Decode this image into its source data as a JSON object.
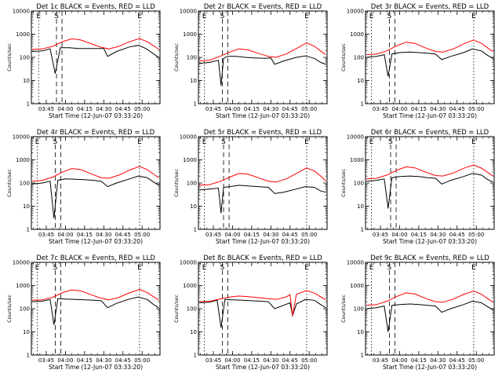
{
  "chart_data": [
    {
      "type": "line",
      "title": "Det 1c BLACK = Events, RED = LLD",
      "ylabel": "Counts/sec",
      "xlabel": "Start Time (12-Jun-07 03:33:20)",
      "ylog": true,
      "ylim": [
        1,
        10000
      ],
      "xticks": [
        "03:45",
        "04:00",
        "04:15",
        "04:30",
        "04:45",
        "05:00"
      ],
      "markers": [
        {
          "label": "E",
          "time": "03:39"
        },
        {
          "label": "S",
          "time": "03:53"
        },
        {
          "label": "E",
          "time": "04:58"
        }
      ],
      "series": [
        {
          "name": "Events",
          "color": "#000000",
          "x": [
            "03:34",
            "03:42",
            "03:48",
            "03:52",
            "03:56",
            "04:03",
            "04:10",
            "04:20",
            "04:30",
            "04:33",
            "04:40",
            "04:50",
            "04:57",
            "05:03",
            "05:09",
            "05:13"
          ],
          "y": [
            180,
            190,
            230,
            20,
            260,
            260,
            240,
            240,
            240,
            110,
            180,
            280,
            330,
            240,
            140,
            100
          ]
        },
        {
          "name": "LLD",
          "color": "#ff0000",
          "x": [
            "03:34",
            "03:42",
            "03:50",
            "03:58",
            "04:05",
            "04:12",
            "04:20",
            "04:28",
            "04:34",
            "04:42",
            "04:50",
            "04:58",
            "05:04",
            "05:10",
            "05:13"
          ],
          "y": [
            220,
            230,
            300,
            480,
            630,
            560,
            390,
            270,
            230,
            300,
            470,
            650,
            470,
            290,
            220
          ]
        }
      ]
    },
    {
      "type": "line",
      "title": "Det 2r BLACK = Events, RED = LLD",
      "ylabel": "Counts/sec",
      "xlabel": "Start Time (12-Jun-07 03:33:20)",
      "ylog": true,
      "ylim": [
        1,
        10000
      ],
      "xticks": [
        "03:45",
        "04:00",
        "04:15",
        "04:30",
        "04:45",
        "05:00"
      ],
      "markers": [
        {
          "label": "E",
          "time": "03:38"
        },
        {
          "label": "S",
          "time": "03:52"
        },
        {
          "label": "E",
          "time": "04:58"
        }
      ],
      "series": [
        {
          "name": "Events",
          "color": "#000000",
          "x": [
            "03:34",
            "03:42",
            "03:49",
            "03:51",
            "03:53",
            "03:56",
            "04:03",
            "04:10",
            "04:17",
            "04:25",
            "04:30",
            "04:33",
            "04:40",
            "04:50",
            "04:57",
            "05:04",
            "05:09",
            "05:13"
          ],
          "y": [
            55,
            60,
            75,
            6,
            90,
            110,
            110,
            100,
            95,
            90,
            95,
            50,
            70,
            100,
            115,
            90,
            60,
            50
          ]
        },
        {
          "name": "LLD",
          "color": "#ff0000",
          "x": [
            "03:34",
            "03:42",
            "03:50",
            "03:58",
            "04:05",
            "04:12",
            "04:20",
            "04:28",
            "04:34",
            "04:42",
            "04:50",
            "04:58",
            "05:04",
            "05:10",
            "05:13"
          ],
          "y": [
            70,
            75,
            110,
            170,
            230,
            210,
            150,
            110,
            100,
            140,
            240,
            420,
            300,
            170,
            130
          ]
        }
      ]
    },
    {
      "type": "line",
      "title": "Det 3r BLACK = Events, RED = LLD",
      "ylabel": "Counts/sec",
      "xlabel": "Start Time (12-Jun-07 03:33:20)",
      "ylog": true,
      "ylim": [
        1,
        10000
      ],
      "xticks": [
        "03:45",
        "04:00",
        "04:15",
        "04:30",
        "04:45",
        "05:00"
      ],
      "markers": [
        {
          "label": "E",
          "time": "03:38"
        },
        {
          "label": "S",
          "time": "03:52"
        },
        {
          "label": "E",
          "time": "04:58"
        }
      ],
      "series": [
        {
          "name": "Events",
          "color": "#000000",
          "x": [
            "03:34",
            "03:42",
            "03:48",
            "03:51",
            "03:54",
            "04:00",
            "04:08",
            "04:15",
            "04:22",
            "04:28",
            "04:33",
            "04:40",
            "04:50",
            "04:57",
            "05:04",
            "05:09",
            "05:13"
          ],
          "y": [
            100,
            110,
            130,
            15,
            140,
            160,
            170,
            160,
            150,
            140,
            80,
            110,
            160,
            230,
            190,
            120,
            90
          ]
        },
        {
          "name": "LLD",
          "color": "#ff0000",
          "x": [
            "03:34",
            "03:42",
            "03:50",
            "03:58",
            "04:05",
            "04:12",
            "04:20",
            "04:28",
            "04:34",
            "04:42",
            "04:50",
            "04:58",
            "05:04",
            "05:10",
            "05:13"
          ],
          "y": [
            130,
            140,
            190,
            320,
            450,
            400,
            260,
            180,
            170,
            230,
            380,
            560,
            400,
            230,
            180
          ]
        }
      ]
    },
    {
      "type": "line",
      "title": "Det 4r BLACK = Events, RED = LLD",
      "ylabel": "Counts/sec",
      "xlabel": "Start Time (12-Jun-07 03:33:20)",
      "ylog": true,
      "ylim": [
        1,
        10000
      ],
      "xticks": [
        "03:45",
        "04:00",
        "04:15",
        "04:30",
        "04:45",
        "05:00"
      ],
      "markers": [
        {
          "label": "E",
          "time": "03:38"
        },
        {
          "label": "S",
          "time": "03:52"
        },
        {
          "label": "E",
          "time": "04:58"
        }
      ],
      "series": [
        {
          "name": "Events",
          "color": "#000000",
          "x": [
            "03:34",
            "03:42",
            "03:48",
            "03:51",
            "03:54",
            "04:00",
            "04:08",
            "04:15",
            "04:22",
            "04:28",
            "04:33",
            "04:40",
            "04:50",
            "04:57",
            "05:04",
            "05:09",
            "05:13"
          ],
          "y": [
            90,
            100,
            120,
            3,
            130,
            150,
            145,
            140,
            130,
            120,
            70,
            100,
            150,
            200,
            170,
            110,
            80
          ]
        },
        {
          "name": "LLD",
          "color": "#ff0000",
          "x": [
            "03:34",
            "03:42",
            "03:50",
            "03:58",
            "04:05",
            "04:12",
            "04:20",
            "04:28",
            "04:34",
            "04:42",
            "04:50",
            "04:58",
            "05:04",
            "05:10",
            "05:13"
          ],
          "y": [
            120,
            130,
            180,
            300,
            420,
            380,
            250,
            170,
            160,
            220,
            360,
            520,
            380,
            220,
            170
          ]
        }
      ]
    },
    {
      "type": "line",
      "title": "Det 5r BLACK = Events, RED = LLD",
      "ylabel": "Counts/sec",
      "xlabel": "Start Time (12-Jun-07 03:33:20)",
      "ylog": true,
      "ylim": [
        1,
        10000
      ],
      "xticks": [
        "03:45",
        "04:00",
        "04:15",
        "04:30",
        "04:45",
        "05:00"
      ],
      "markers": [
        {
          "label": "E",
          "time": "03:38"
        },
        {
          "label": "S",
          "time": "03:53"
        },
        {
          "label": "E",
          "time": "04:58"
        }
      ],
      "series": [
        {
          "name": "Events",
          "color": "#000000",
          "x": [
            "03:34",
            "03:42",
            "03:49",
            "03:51",
            "03:53",
            "03:58",
            "04:05",
            "04:12",
            "04:20",
            "04:28",
            "04:33",
            "04:40",
            "04:50",
            "04:57",
            "05:04",
            "05:09",
            "05:13"
          ],
          "y": [
            50,
            55,
            60,
            5,
            65,
            70,
            80,
            75,
            70,
            65,
            35,
            40,
            55,
            70,
            65,
            45,
            40
          ]
        },
        {
          "name": "LLD",
          "color": "#ff0000",
          "x": [
            "03:34",
            "03:42",
            "03:50",
            "03:58",
            "04:05",
            "04:12",
            "04:20",
            "04:28",
            "04:34",
            "04:42",
            "04:50",
            "04:58",
            "05:04",
            "05:10",
            "05:13"
          ],
          "y": [
            80,
            85,
            115,
            180,
            260,
            240,
            170,
            120,
            110,
            150,
            260,
            450,
            330,
            180,
            120
          ]
        }
      ]
    },
    {
      "type": "line",
      "title": "Det 6r BLACK = Events, RED = LLD",
      "ylabel": "Counts/sec",
      "xlabel": "Start Time (12-Jun-07 03:33:20)",
      "ylog": true,
      "ylim": [
        1,
        10000
      ],
      "xticks": [
        "03:45",
        "04:00",
        "04:15",
        "04:30",
        "04:45",
        "05:00"
      ],
      "markers": [
        {
          "label": "E",
          "time": "03:38"
        },
        {
          "label": "S",
          "time": "03:53"
        },
        {
          "label": "E",
          "time": "04:58"
        }
      ],
      "series": [
        {
          "name": "Events",
          "color": "#000000",
          "x": [
            "03:34",
            "03:42",
            "03:48",
            "03:51",
            "03:54",
            "04:00",
            "04:08",
            "04:15",
            "04:22",
            "04:28",
            "04:33",
            "04:40",
            "04:50",
            "04:57",
            "05:04",
            "05:09",
            "05:13"
          ],
          "y": [
            120,
            130,
            150,
            8,
            170,
            190,
            200,
            190,
            170,
            160,
            90,
            130,
            190,
            260,
            220,
            140,
            110
          ]
        },
        {
          "name": "LLD",
          "color": "#ff0000",
          "x": [
            "03:34",
            "03:42",
            "03:50",
            "03:58",
            "04:05",
            "04:12",
            "04:20",
            "04:28",
            "04:34",
            "04:42",
            "04:50",
            "04:58",
            "05:04",
            "05:10",
            "05:13"
          ],
          "y": [
            150,
            160,
            220,
            360,
            500,
            450,
            300,
            210,
            200,
            270,
            430,
            600,
            440,
            260,
            200
          ]
        }
      ]
    },
    {
      "type": "line",
      "title": "Det 7c BLACK = Events, RED = LLD",
      "ylabel": "Counts/sec",
      "xlabel": "Start Time (12-Jun-07 03:33:20)",
      "ylog": true,
      "ylim": [
        1,
        10000
      ],
      "xticks": [
        "03:45",
        "04:00",
        "04:15",
        "04:30",
        "04:45",
        "05:00"
      ],
      "markers": [
        {
          "label": "E",
          "time": "03:38"
        },
        {
          "label": "S",
          "time": "03:52"
        },
        {
          "label": "E",
          "time": "04:58"
        }
      ],
      "series": [
        {
          "name": "Events",
          "color": "#000000",
          "x": [
            "03:34",
            "03:42",
            "03:48",
            "03:51",
            "03:54",
            "04:00",
            "04:08",
            "04:15",
            "04:22",
            "04:28",
            "04:33",
            "04:40",
            "04:50",
            "04:57",
            "05:04",
            "05:09",
            "05:13"
          ],
          "y": [
            200,
            210,
            250,
            20,
            270,
            260,
            250,
            240,
            230,
            220,
            110,
            170,
            260,
            320,
            250,
            150,
            110
          ]
        },
        {
          "name": "LLD",
          "color": "#ff0000",
          "x": [
            "03:34",
            "03:42",
            "03:50",
            "03:58",
            "04:05",
            "04:12",
            "04:20",
            "04:28",
            "04:34",
            "04:42",
            "04:50",
            "04:58",
            "05:04",
            "05:10",
            "05:13"
          ],
          "y": [
            230,
            240,
            310,
            500,
            650,
            580,
            400,
            280,
            240,
            310,
            480,
            680,
            490,
            300,
            230
          ]
        }
      ]
    },
    {
      "type": "line",
      "title": "Det 8c BLACK = Events, RED = LLD",
      "ylabel": "Counts/sec",
      "xlabel": "Start Time (12-Jun-07 03:33:20)",
      "ylog": true,
      "ylim": [
        1,
        10000
      ],
      "xticks": [
        "03:45",
        "04:00",
        "04:15",
        "04:30",
        "04:45",
        "05:00"
      ],
      "markers": [
        {
          "label": "E",
          "time": "03:38"
        },
        {
          "label": "S",
          "time": "03:52"
        },
        {
          "label": "E",
          "time": "04:58"
        }
      ],
      "series": [
        {
          "name": "Events",
          "color": "#000000",
          "x": [
            "03:34",
            "03:42",
            "03:48",
            "03:51",
            "03:54",
            "04:00",
            "04:08",
            "04:15",
            "04:22",
            "04:28",
            "04:33",
            "04:40",
            "04:45",
            "04:47",
            "04:50",
            "04:57",
            "05:04",
            "05:09",
            "05:13"
          ],
          "y": [
            180,
            190,
            230,
            15,
            250,
            240,
            230,
            220,
            210,
            200,
            100,
            140,
            180,
            50,
            160,
            250,
            230,
            150,
            110
          ]
        },
        {
          "name": "LLD",
          "color": "#ff0000",
          "x": [
            "03:34",
            "03:42",
            "03:50",
            "03:58",
            "04:05",
            "04:12",
            "04:20",
            "04:28",
            "04:34",
            "04:42",
            "04:45",
            "04:47",
            "04:50",
            "04:58",
            "05:04",
            "05:10",
            "05:13"
          ],
          "y": [
            200,
            210,
            260,
            320,
            350,
            330,
            300,
            270,
            250,
            320,
            400,
            50,
            420,
            600,
            470,
            300,
            240
          ]
        }
      ]
    },
    {
      "type": "line",
      "title": "Det 9c BLACK = Events, RED = LLD",
      "ylabel": "Counts/sec",
      "xlabel": "Start Time (12-Jun-07 03:33:20)",
      "ylog": true,
      "ylim": [
        1,
        10000
      ],
      "xticks": [
        "03:45",
        "04:00",
        "04:15",
        "04:30",
        "04:45",
        "05:00"
      ],
      "markers": [
        {
          "label": "E",
          "time": "03:38"
        },
        {
          "label": "S",
          "time": "03:52"
        },
        {
          "label": "E",
          "time": "04:58"
        }
      ],
      "series": [
        {
          "name": "Events",
          "color": "#000000",
          "x": [
            "03:34",
            "03:42",
            "03:48",
            "03:51",
            "03:54",
            "04:00",
            "04:08",
            "04:15",
            "04:22",
            "04:28",
            "04:33",
            "04:40",
            "04:50",
            "04:57",
            "05:04",
            "05:09",
            "05:13"
          ],
          "y": [
            100,
            110,
            130,
            10,
            140,
            150,
            160,
            150,
            140,
            130,
            70,
            100,
            150,
            210,
            180,
            120,
            90
          ]
        },
        {
          "name": "LLD",
          "color": "#ff0000",
          "x": [
            "03:34",
            "03:42",
            "03:50",
            "03:58",
            "04:05",
            "04:12",
            "04:20",
            "04:28",
            "04:34",
            "04:42",
            "04:50",
            "04:58",
            "05:04",
            "05:10",
            "05:13"
          ],
          "y": [
            140,
            150,
            210,
            340,
            480,
            430,
            280,
            200,
            190,
            260,
            410,
            580,
            420,
            250,
            190
          ]
        }
      ]
    }
  ]
}
